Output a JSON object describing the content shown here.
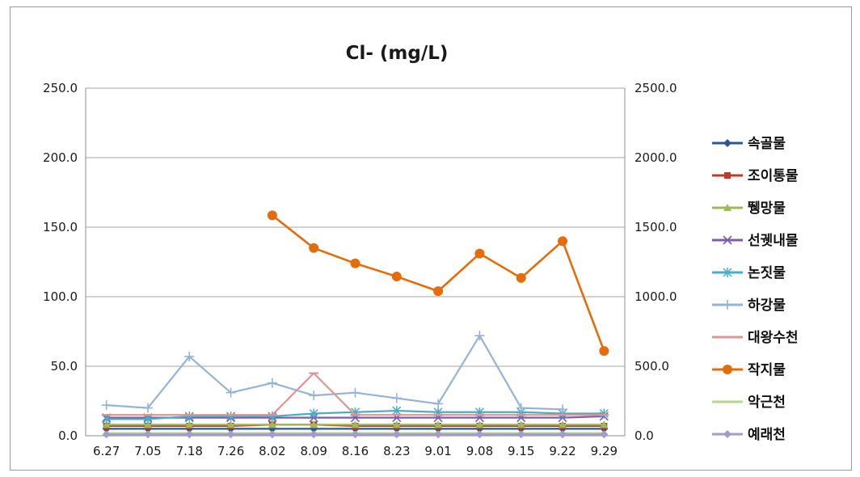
{
  "chart_data": {
    "type": "line",
    "title": "Cl- (mg/L)",
    "xlabel": "",
    "ylabel": "",
    "y_left_lim": [
      0,
      250
    ],
    "y_right_lim": [
      0,
      2500
    ],
    "y_left_ticks": [
      "250.0",
      "200.0",
      "150.0",
      "100.0",
      "50.0",
      "0.0"
    ],
    "y_right_ticks": [
      "2500.0",
      "2000.0",
      "1500.0",
      "1000.0",
      "500.0",
      "0.0"
    ],
    "legend_position": "right",
    "grid": "horizontal",
    "categories": [
      "6.27",
      "7.05",
      "7.18",
      "7.26",
      "8.02",
      "8.09",
      "8.16",
      "8.23",
      "9.01",
      "9.08",
      "9.15",
      "9.22",
      "9.29"
    ],
    "series": [
      {
        "name": "속골물",
        "axis": "left",
        "color": "#2f5597",
        "marker": "diamond",
        "values": [
          5,
          5,
          5,
          5,
          5,
          5,
          5,
          5,
          5,
          5,
          5,
          5,
          5
        ]
      },
      {
        "name": "조이통물",
        "axis": "left",
        "color": "#c0392b",
        "marker": "square",
        "values": [
          7,
          7,
          7,
          7,
          8,
          8,
          7,
          7,
          7,
          7,
          7,
          7,
          7
        ]
      },
      {
        "name": "뛩망물",
        "axis": "left",
        "color": "#9bbb59",
        "marker": "triangle",
        "values": [
          8,
          8,
          8,
          8,
          8,
          8,
          8,
          8,
          8,
          8,
          8,
          8,
          8
        ]
      },
      {
        "name": "선궷내물",
        "axis": "left",
        "color": "#7b5ea7",
        "marker": "x",
        "values": [
          13,
          13,
          13,
          13,
          13,
          13,
          13,
          13,
          13,
          13,
          13,
          13,
          14
        ]
      },
      {
        "name": "논짓물",
        "axis": "left",
        "color": "#4bacc6",
        "marker": "star",
        "values": [
          12,
          12,
          14,
          14,
          14,
          16,
          17,
          18,
          17,
          17,
          17,
          16,
          16
        ]
      },
      {
        "name": "하강물",
        "axis": "left",
        "color": "#95b3d7",
        "marker": "plus",
        "values": [
          22,
          20,
          57,
          31,
          38,
          29,
          31,
          27,
          23,
          72,
          20,
          19,
          null
        ]
      },
      {
        "name": "대왕수천",
        "axis": "left",
        "color": "#d99694",
        "marker": "dash",
        "values": [
          15,
          15,
          15,
          15,
          15,
          45,
          15,
          15,
          15,
          15,
          15,
          15,
          15
        ]
      },
      {
        "name": "작지물",
        "axis": "right",
        "color": "#e46c0a",
        "marker": "circle",
        "values": [
          null,
          null,
          null,
          null,
          1585,
          1350,
          1240,
          1145,
          1040,
          1310,
          1135,
          1400,
          610
        ]
      },
      {
        "name": "악근천",
        "axis": "left",
        "color": "#b3d88a",
        "marker": "none",
        "values": [
          2,
          2,
          2,
          2,
          2,
          2,
          2,
          2,
          2,
          2,
          2,
          2,
          2
        ]
      },
      {
        "name": "예래천",
        "axis": "left",
        "color": "#a39bc8",
        "marker": "diamond",
        "values": [
          1,
          1,
          1,
          1,
          1,
          1,
          1,
          1,
          1,
          1,
          1,
          1,
          1
        ]
      }
    ]
  }
}
